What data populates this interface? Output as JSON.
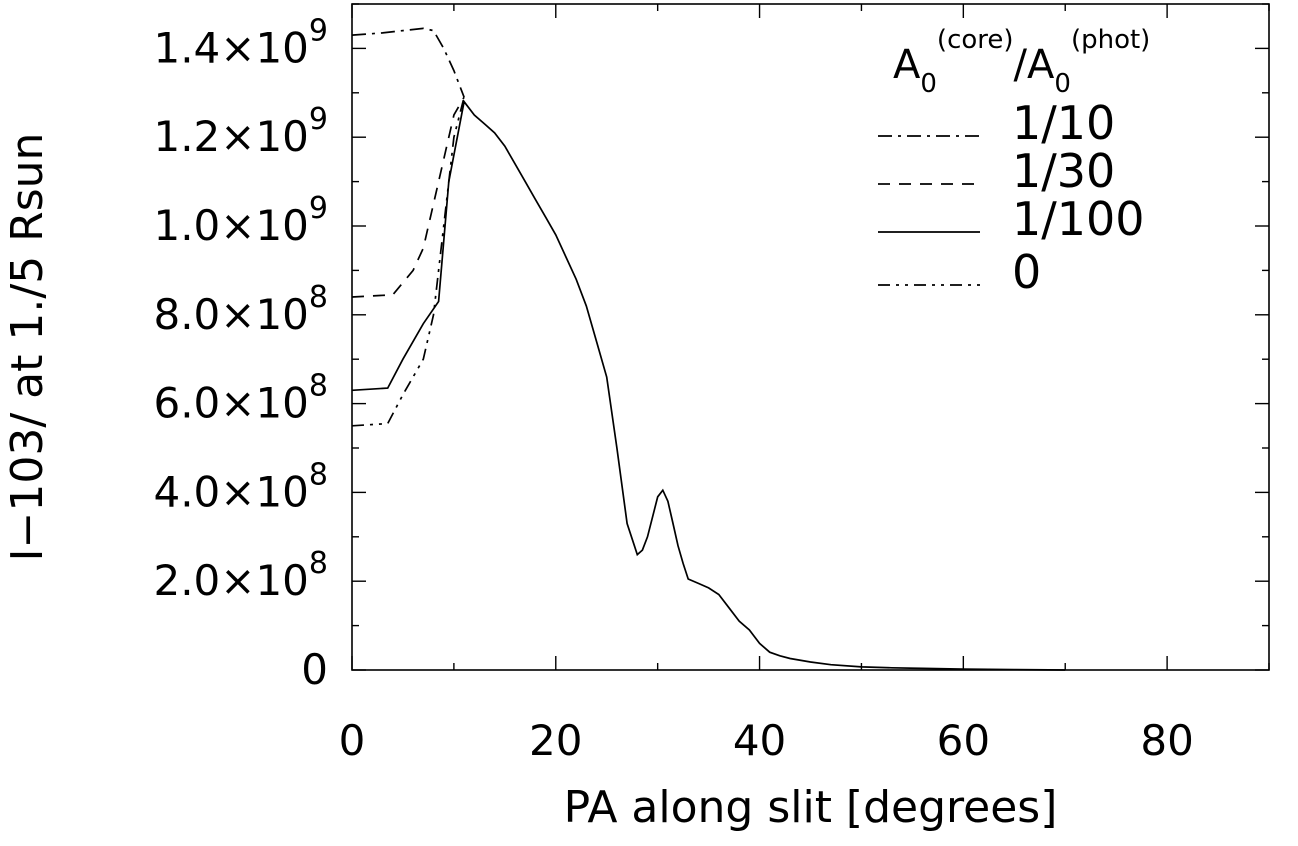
{
  "chart_data": {
    "type": "line",
    "title": "",
    "xlabel": "PA along slit [degrees]",
    "ylabel": "I−103/  at 1./5 Rsun",
    "xlim": [
      0,
      90
    ],
    "ylim": [
      0,
      1500000000.0
    ],
    "grid": false,
    "legend_position": "top-right",
    "x_ticks": [
      {
        "value": 0,
        "label": "0"
      },
      {
        "value": 20,
        "label": "20"
      },
      {
        "value": 40,
        "label": "40"
      },
      {
        "value": 60,
        "label": "60"
      },
      {
        "value": 80,
        "label": "80"
      }
    ],
    "y_ticks": [
      {
        "value": 0,
        "mantissa": "0",
        "exp": ""
      },
      {
        "value": 200000000.0,
        "mantissa": "2.0×10",
        "exp": "8"
      },
      {
        "value": 400000000.0,
        "mantissa": "4.0×10",
        "exp": "8"
      },
      {
        "value": 600000000.0,
        "mantissa": "6.0×10",
        "exp": "8"
      },
      {
        "value": 800000000.0,
        "mantissa": "8.0×10",
        "exp": "8"
      },
      {
        "value": 1000000000.0,
        "mantissa": "1.0×10",
        "exp": "9"
      },
      {
        "value": 1200000000.0,
        "mantissa": "1.2×10",
        "exp": "9"
      },
      {
        "value": 1400000000.0,
        "mantissa": "1.4×10",
        "exp": "9"
      }
    ],
    "legend_title": {
      "num_base": "A",
      "num_sub": "0",
      "num_sup": "(core)",
      "slash": "/",
      "den_base": "A",
      "den_sub": "0",
      "den_sup": "(phot)"
    },
    "series": [
      {
        "name": "1/10",
        "dash": "dashdot",
        "x": [
          0,
          3,
          5,
          7,
          8,
          9,
          10,
          11
        ],
        "y": [
          1430000000.0,
          1435000000.0,
          1440000000.0,
          1445000000.0,
          1440000000.0,
          1400000000.0,
          1350000000.0,
          1290000000.0
        ]
      },
      {
        "name": "1/30",
        "dash": "dashed",
        "x": [
          0,
          4,
          6,
          7,
          8,
          9,
          10,
          11
        ],
        "y": [
          840000000.0,
          845000000.0,
          900000000.0,
          950000000.0,
          1050000000.0,
          1150000000.0,
          1250000000.0,
          1290000000.0
        ]
      },
      {
        "name": "1/100",
        "dash": "solid",
        "x": [
          0,
          3.5,
          5,
          7,
          8.5,
          9.5,
          11,
          12,
          13,
          14,
          15,
          16,
          17,
          18,
          19,
          20,
          21,
          22,
          23,
          24,
          25,
          26,
          27,
          28,
          28.5,
          29,
          30,
          30.5,
          31,
          31.5,
          32,
          32.5,
          33,
          34,
          35,
          36,
          37,
          38,
          39,
          40,
          41,
          42,
          43,
          45,
          47,
          50,
          53,
          56,
          60,
          65,
          70
        ],
        "y": [
          630000000.0,
          635000000.0,
          700000000.0,
          780000000.0,
          830000000.0,
          1100000000.0,
          1280000000.0,
          1250000000.0,
          1230000000.0,
          1210000000.0,
          1180000000.0,
          1140000000.0,
          1100000000.0,
          1060000000.0,
          1020000000.0,
          980000000.0,
          930000000.0,
          880000000.0,
          820000000.0,
          740000000.0,
          660000000.0,
          500000000.0,
          330000000.0,
          260000000.0,
          270000000.0,
          300000000.0,
          390000000.0,
          405000000.0,
          380000000.0,
          330000000.0,
          280000000.0,
          240000000.0,
          205000000.0,
          195000000.0,
          185000000.0,
          170000000.0,
          140000000.0,
          110000000.0,
          90000000.0,
          60000000.0,
          40000000.0,
          32000000.0,
          26000000.0,
          18000000.0,
          12000000.0,
          7000000.0,
          5000000.0,
          3500000.0,
          2000000.0,
          800000.0,
          0
        ]
      },
      {
        "name": "0",
        "dash": "dashdotdot",
        "x": [
          0,
          3.5,
          5,
          7,
          8,
          9,
          10,
          11
        ],
        "y": [
          550000000.0,
          555000000.0,
          620000000.0,
          700000000.0,
          800000000.0,
          1000000000.0,
          1200000000.0,
          1290000000.0
        ]
      }
    ]
  }
}
